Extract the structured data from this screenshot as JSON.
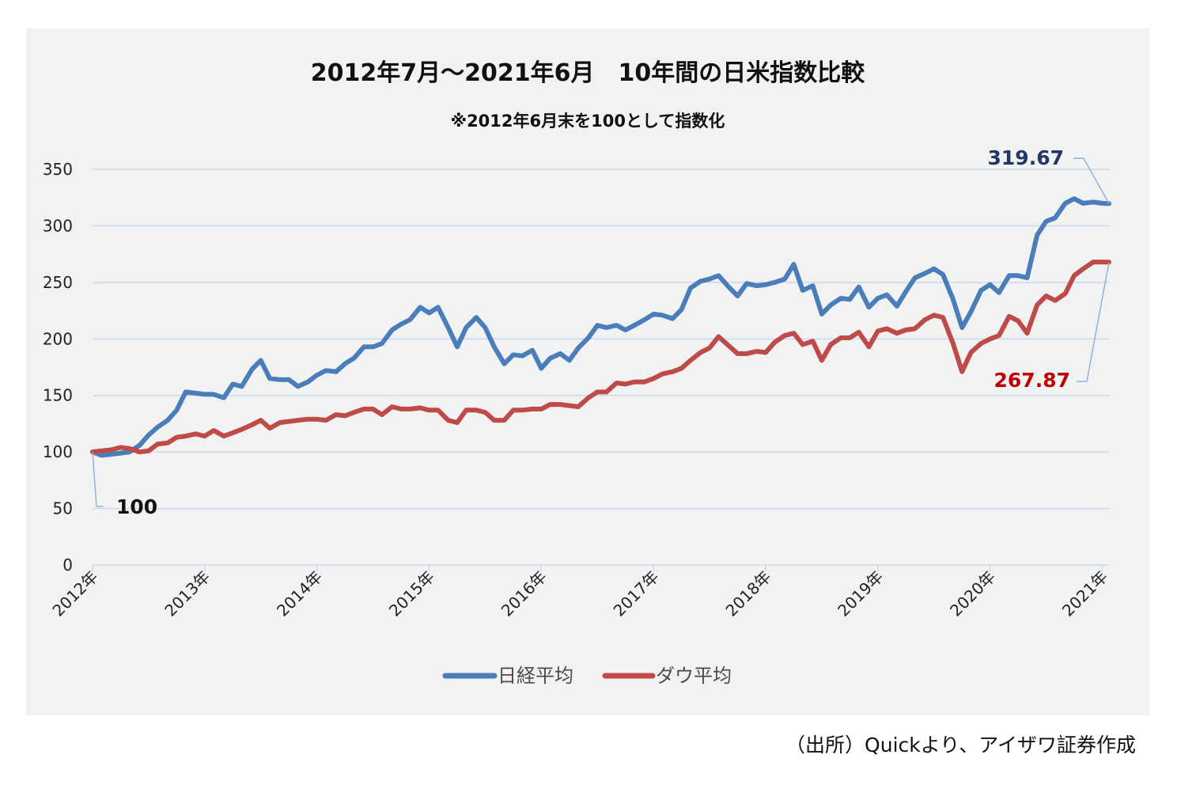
{
  "source_note": "（出所）Quickより、アイザワ証券作成",
  "colors": {
    "nikkei": "#4a7ebb",
    "dow": "#be4b48",
    "nikkei_label": "#1f3864",
    "dow_label": "#c00000",
    "grid": "#c9d9f0",
    "leader": "#8db3e2",
    "panel_bg": "#f2f2f2"
  },
  "chart_data": {
    "type": "line",
    "title": "2012年7月～2021年6月　10年間の日米指数比較",
    "subtitle": "※2012年6月末を100として指数化",
    "ylim": [
      0,
      350
    ],
    "yticks": [
      0,
      50,
      100,
      150,
      200,
      250,
      300,
      350
    ],
    "xlim": [
      2012.0,
      2021.06
    ],
    "xticks": [
      {
        "value": 2012,
        "label": "2012年"
      },
      {
        "value": 2013,
        "label": "2013年"
      },
      {
        "value": 2014,
        "label": "2014年"
      },
      {
        "value": 2015,
        "label": "2015年"
      },
      {
        "value": 2016,
        "label": "2016年"
      },
      {
        "value": 2017,
        "label": "2017年"
      },
      {
        "value": 2018,
        "label": "2018年"
      },
      {
        "value": 2019,
        "label": "2019年"
      },
      {
        "value": 2020,
        "label": "2020年"
      },
      {
        "value": 2021,
        "label": "2021年"
      }
    ],
    "grid": true,
    "legend_position": "bottom",
    "x": [
      2012.0,
      2012.08,
      2012.17,
      2012.25,
      2012.33,
      2012.42,
      2012.5,
      2012.58,
      2012.67,
      2012.75,
      2012.83,
      2012.92,
      2013.0,
      2013.08,
      2013.17,
      2013.25,
      2013.33,
      2013.42,
      2013.5,
      2013.58,
      2013.67,
      2013.75,
      2013.83,
      2013.92,
      2014.0,
      2014.08,
      2014.17,
      2014.25,
      2014.33,
      2014.42,
      2014.5,
      2014.58,
      2014.67,
      2014.75,
      2014.83,
      2014.92,
      2015.0,
      2015.08,
      2015.17,
      2015.25,
      2015.33,
      2015.42,
      2015.5,
      2015.58,
      2015.67,
      2015.75,
      2015.83,
      2015.92,
      2016.0,
      2016.08,
      2016.17,
      2016.25,
      2016.33,
      2016.42,
      2016.5,
      2016.58,
      2016.67,
      2016.75,
      2016.83,
      2016.92,
      2017.0,
      2017.08,
      2017.17,
      2017.25,
      2017.33,
      2017.42,
      2017.5,
      2017.58,
      2017.67,
      2017.75,
      2017.83,
      2017.92,
      2018.0,
      2018.08,
      2018.17,
      2018.25,
      2018.33,
      2018.42,
      2018.5,
      2018.58,
      2018.67,
      2018.75,
      2018.83,
      2018.92,
      2019.0,
      2019.08,
      2019.17,
      2019.25,
      2019.33,
      2019.42,
      2019.5,
      2019.58,
      2019.67,
      2019.75,
      2019.83,
      2019.92,
      2020.0,
      2020.08,
      2020.17,
      2020.25,
      2020.33,
      2020.42,
      2020.5,
      2020.58,
      2020.67,
      2020.75,
      2020.83,
      2020.92,
      2021.0,
      2021.06
    ],
    "series": [
      {
        "name": "日経平均",
        "values": [
          100,
          97,
          98,
          99,
          100,
          106,
          115,
          122,
          128,
          137,
          153,
          152,
          151,
          151,
          148,
          160,
          158,
          173,
          181,
          165,
          164,
          164,
          158,
          162,
          168,
          172,
          171,
          178,
          183,
          193,
          193,
          196,
          208,
          213,
          217,
          228,
          223,
          228,
          210,
          193,
          210,
          219,
          210,
          193,
          178,
          186,
          185,
          190,
          174,
          183,
          187,
          181,
          192,
          201,
          212,
          210,
          212,
          208,
          212,
          217,
          222,
          221,
          218,
          226,
          245,
          251,
          253,
          256,
          246,
          238,
          249,
          247,
          248,
          250,
          253,
          266,
          243,
          247,
          222,
          230,
          236,
          235,
          246,
          228,
          236,
          239,
          229,
          242,
          254,
          258,
          262,
          257,
          235,
          210,
          224,
          243,
          248,
          241,
          256,
          256,
          254,
          292,
          304,
          307,
          320,
          324,
          320,
          321,
          320,
          319.67
        ]
      },
      {
        "name": "ダウ平均",
        "values": [
          100,
          101,
          102,
          104,
          103,
          100,
          101,
          107,
          108,
          113,
          114,
          116,
          114,
          119,
          114,
          117,
          120,
          124,
          128,
          121,
          126,
          127,
          128,
          129,
          129,
          128,
          133,
          132,
          135,
          138,
          138,
          133,
          140,
          138,
          138,
          139,
          137,
          137,
          128,
          126,
          137,
          137,
          135,
          128,
          128,
          137,
          137,
          138,
          138,
          142,
          142,
          141,
          140,
          148,
          153,
          153,
          161,
          160,
          162,
          162,
          165,
          169,
          171,
          174,
          181,
          188,
          192,
          202,
          194,
          187,
          187,
          189,
          188,
          197,
          203,
          205,
          195,
          198,
          181,
          195,
          201,
          201,
          206,
          193,
          207,
          209,
          205,
          208,
          209,
          217,
          221,
          219,
          196,
          171,
          188,
          196,
          200,
          203,
          220,
          216,
          205,
          230,
          238,
          234,
          240,
          256,
          262,
          268,
          268,
          267.87
        ]
      }
    ],
    "annotations": [
      {
        "series": 0,
        "label": "319.67"
      },
      {
        "series": 1,
        "label": "267.87"
      },
      {
        "series": 1,
        "label": "100"
      }
    ]
  }
}
